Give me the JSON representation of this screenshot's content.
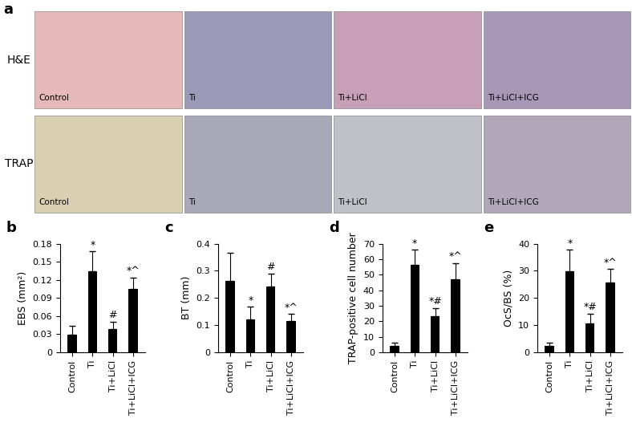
{
  "figure_panels": {
    "panel_label": "a",
    "row_labels": [
      "H&E",
      "TRAP"
    ],
    "image_labels": [
      "Control",
      "Ti",
      "Ti+LiCl",
      "Ti+LiCl+ICG"
    ]
  },
  "chart_data": [
    {
      "type": "bar",
      "title": "b",
      "y_label": "EBS (mm²)",
      "color": "#000000",
      "categories": [
        "Control",
        "Ti",
        "Ti+LiCl",
        "Ti+LiCl+ICG"
      ],
      "values": [
        0.029,
        0.134,
        0.039,
        0.105
      ],
      "errors": [
        0.015,
        0.033,
        0.012,
        0.019
      ],
      "annotations": [
        null,
        "*",
        "#",
        "*^"
      ],
      "ylim": [
        0,
        0.18
      ],
      "yticks": [
        0,
        0.03,
        0.06,
        0.09,
        0.12,
        0.15,
        0.18
      ],
      "grid": false
    },
    {
      "type": "bar",
      "title": "c",
      "y_label": "BT (mm)",
      "color": "#000000",
      "categories": [
        "Control",
        "Ti",
        "Ti+LiCl",
        "Ti+LiCl+ICG"
      ],
      "values": [
        0.262,
        0.12,
        0.243,
        0.114
      ],
      "errors": [
        0.105,
        0.047,
        0.047,
        0.027
      ],
      "annotations": [
        null,
        "*",
        "#",
        "*^"
      ],
      "ylim": [
        0,
        0.4
      ],
      "yticks": [
        0,
        0.1,
        0.2,
        0.3,
        0.4
      ],
      "grid": false
    },
    {
      "type": "bar",
      "title": "d",
      "y_label": "TRAP-positive cell number",
      "color": "#000000",
      "categories": [
        "Control",
        "Ti",
        "Ti+LiCl",
        "Ti+LiCl+ICG"
      ],
      "values": [
        3.8,
        56.5,
        23,
        47
      ],
      "errors": [
        2.5,
        9.5,
        5.5,
        10.5
      ],
      "annotations": [
        null,
        "*",
        "*#",
        "*^"
      ],
      "ylim": [
        0,
        70
      ],
      "yticks": [
        0,
        10,
        20,
        30,
        40,
        50,
        60,
        70
      ],
      "grid": false
    },
    {
      "type": "bar",
      "title": "e",
      "y_label": "OcS/BS (%)",
      "color": "#000000",
      "categories": [
        "Control",
        "Ti",
        "Ti+LiCl",
        "Ti+LiCl+ICG"
      ],
      "values": [
        2.4,
        29.7,
        10.7,
        25.6
      ],
      "errors": [
        1.0,
        8.0,
        3.5,
        5.0
      ],
      "annotations": [
        null,
        "*",
        "*#",
        "*^"
      ],
      "ylim": [
        0,
        40
      ],
      "yticks": [
        0,
        10,
        20,
        30,
        40
      ],
      "grid": false
    }
  ]
}
